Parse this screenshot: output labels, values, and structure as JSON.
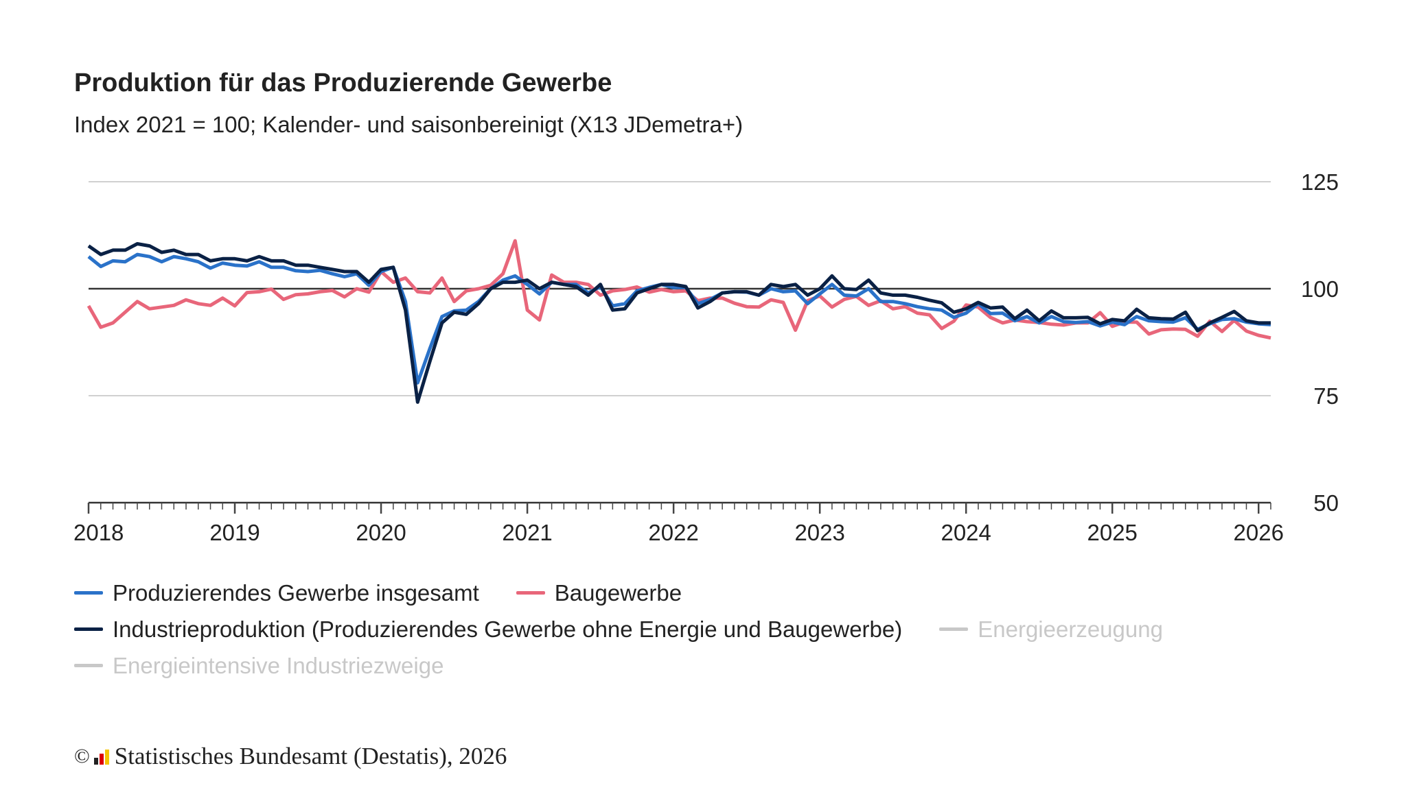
{
  "chart_data": {
    "type": "line",
    "title": "Produktion für das Produzierende Gewerbe",
    "subtitle": "Index 2021 = 100; Kalender- und saisonbereinigt (X13 JDemetra+)",
    "x_start": "2018-01",
    "x_end": "2026-02",
    "frequency": "monthly",
    "x_ticks": [
      "2018",
      "2019",
      "2020",
      "2021",
      "2022",
      "2023",
      "2024",
      "2025",
      "2026"
    ],
    "y_ticks": [
      50,
      75,
      100,
      125
    ],
    "ylim": [
      50,
      125
    ],
    "reference_line": 100,
    "grid": true,
    "legend_position": "bottom",
    "series": [
      {
        "name": "Produzierendes Gewerbe insgesamt",
        "color": "#2a72c9",
        "active": true,
        "values": [
          107.5,
          105.2,
          106.5,
          106.3,
          108,
          107.5,
          106.3,
          107.5,
          107,
          106.3,
          104.8,
          106,
          105.5,
          105.3,
          106.3,
          105,
          105,
          104.2,
          104,
          104.3,
          103.5,
          102.8,
          103.5,
          100.8,
          104,
          105,
          97,
          78,
          86,
          93.5,
          94.8,
          95,
          97,
          100,
          102,
          103,
          101,
          98.8,
          101.5,
          101,
          101,
          99,
          100.5,
          96,
          96.5,
          99.5,
          100.3,
          101,
          100.3,
          100.3,
          96.5,
          97.5,
          99,
          99.3,
          99.2,
          98.5,
          100,
          99.3,
          99.5,
          96.5,
          98.8,
          101,
          98.5,
          98.3,
          100,
          97,
          97,
          96.5,
          95.8,
          95.3,
          95,
          93.3,
          94.3,
          96.5,
          94.2,
          94.3,
          92.5,
          93.5,
          92,
          93.5,
          92.3,
          92.1,
          92.3,
          91.3,
          92.2,
          91.6,
          93.5,
          92.5,
          92.3,
          92.2,
          93.2,
          90.5,
          91.8,
          92.8,
          93,
          92.2,
          91.8,
          91.6
        ]
      },
      {
        "name": "Baugewerbe",
        "color": "#e8667a",
        "active": true,
        "values": [
          96,
          91,
          92,
          94.5,
          97,
          95.3,
          95.7,
          96.1,
          97.4,
          96.5,
          96.1,
          97.8,
          96,
          99.1,
          99.3,
          99.9,
          97.5,
          98.6,
          98.8,
          99.3,
          99.6,
          98.1,
          100,
          99.2,
          104,
          101.5,
          102.5,
          99.3,
          99,
          102.5,
          97,
          99.5,
          100,
          100.8,
          103.5,
          111.2,
          95,
          92.7,
          103.2,
          101.5,
          101.5,
          101,
          98.5,
          99.5,
          99.8,
          100.4,
          99.2,
          99.8,
          99.3,
          99.5,
          97.2,
          97.8,
          97.8,
          96.6,
          95.8,
          95.7,
          97.4,
          96.8,
          90.3,
          97.2,
          98.3,
          95.7,
          97.5,
          98.2,
          96.1,
          97.2,
          95.3,
          95.8,
          94.3,
          93.9,
          90.7,
          92.4,
          96.2,
          95.7,
          93.3,
          92,
          92.7,
          92.3,
          92.1,
          91.7,
          91.5,
          92,
          92,
          94.4,
          91.2,
          92.2,
          92.2,
          89.4,
          90.4,
          90.6,
          90.5,
          88.9,
          92.4,
          90,
          92.6,
          90.1,
          89.1,
          88.5
        ]
      },
      {
        "name": "Industrieproduktion (Produzierendes Gewerbe ohne Energie und Baugewerbe)",
        "color": "#0a2145",
        "active": true,
        "values": [
          110,
          108,
          109,
          109,
          110.5,
          110,
          108.5,
          109,
          108,
          108,
          106.5,
          107,
          107,
          106.5,
          107.5,
          106.5,
          106.5,
          105.5,
          105.5,
          105,
          104.5,
          104,
          104,
          101.5,
          104.5,
          105,
          95,
          73.5,
          83,
          92,
          94.5,
          94,
          96.5,
          100,
          101.5,
          101.5,
          102,
          100,
          101.5,
          101,
          100.5,
          98.5,
          101,
          95,
          95.3,
          99,
          100,
          101,
          101,
          100.5,
          95.5,
          97,
          99,
          99.3,
          99.3,
          98.5,
          101,
          100.5,
          101,
          98.5,
          100,
          103,
          100,
          99.8,
          102,
          99,
          98.5,
          98.5,
          98,
          97.3,
          96.7,
          94.5,
          95.3,
          96.8,
          95.5,
          95.7,
          93,
          95,
          92.5,
          94.8,
          93.2,
          93.2,
          93.3,
          91.8,
          92.8,
          92.5,
          95.2,
          93.2,
          93,
          92.9,
          94.5,
          90.2,
          92,
          93.3,
          94.7,
          92.5,
          92,
          92
        ]
      },
      {
        "name": "Energieerzeugung",
        "color": "#c8c8c8",
        "active": false,
        "values": []
      },
      {
        "name": "Energieintensive Industriezweige",
        "color": "#c8c8c8",
        "active": false,
        "values": []
      }
    ]
  },
  "footer": {
    "copyright": "©",
    "text": "Statistisches Bundesamt (Destatis), 2026"
  }
}
